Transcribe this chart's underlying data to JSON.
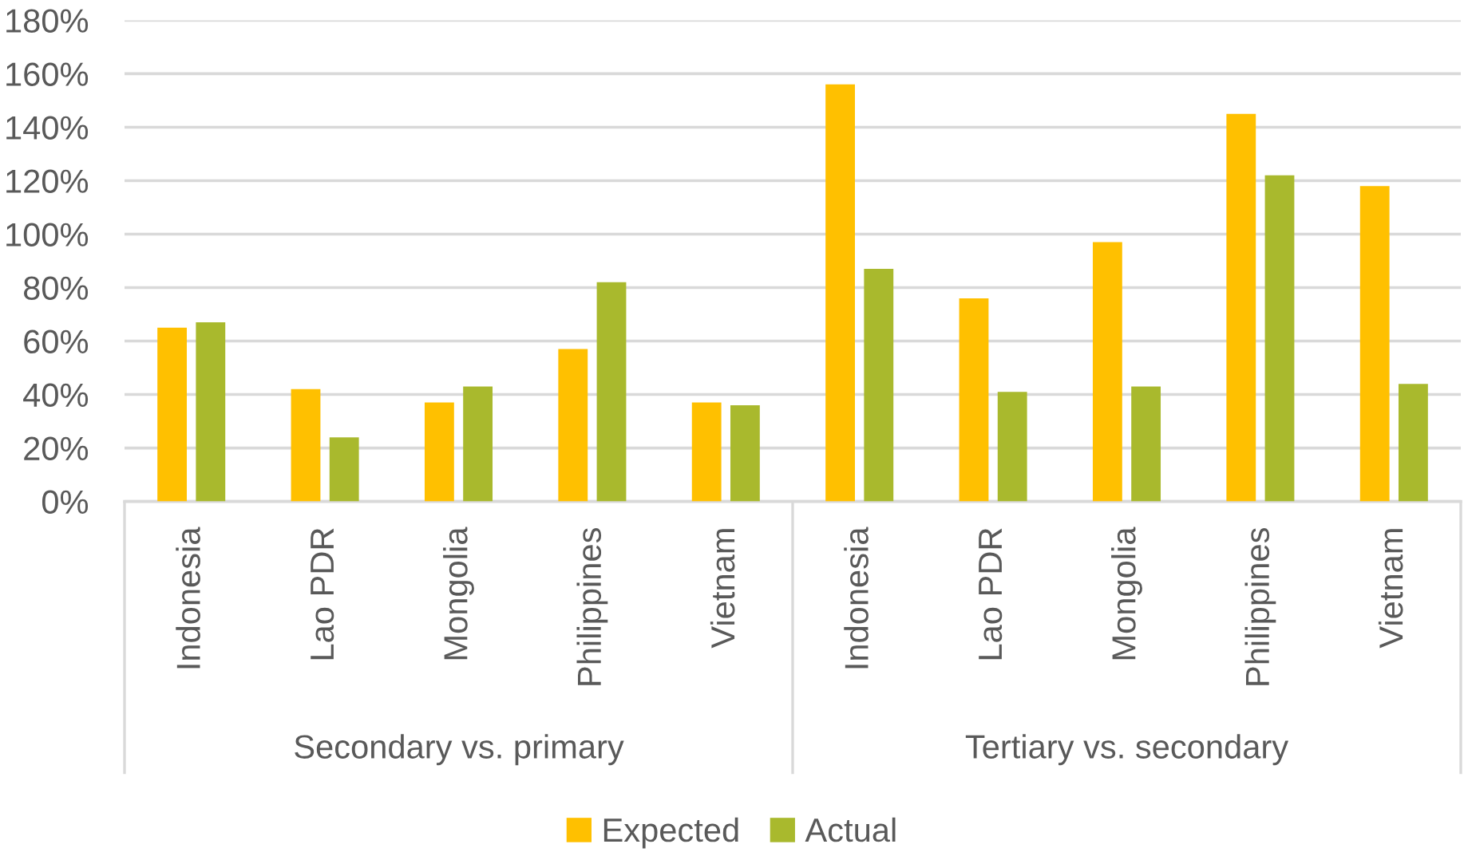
{
  "chart_data": {
    "type": "bar",
    "categories": [
      "Indonesia",
      "Lao PDR",
      "Mongolia",
      "Philippines",
      "Vietnam",
      "Indonesia",
      "Lao PDR",
      "Mongolia",
      "Philippines",
      "Vietnam"
    ],
    "series": [
      {
        "name": "Expected",
        "color": "#FFC000",
        "values": [
          65,
          42,
          37,
          57,
          37,
          156,
          76,
          97,
          145,
          118
        ]
      },
      {
        "name": "Actual",
        "color": "#A9B92D",
        "values": [
          67,
          24,
          43,
          82,
          36,
          87,
          41,
          43,
          122,
          44
        ]
      }
    ],
    "ylim": [
      0,
      180
    ],
    "yticks": [
      {
        "value": 0,
        "label": "0%"
      },
      {
        "value": 20,
        "label": "20%"
      },
      {
        "value": 40,
        "label": "40%"
      },
      {
        "value": 60,
        "label": "60%"
      },
      {
        "value": 80,
        "label": "80%"
      },
      {
        "value": 100,
        "label": "100%"
      },
      {
        "value": 120,
        "label": "120%"
      },
      {
        "value": 140,
        "label": "140%"
      },
      {
        "value": 160,
        "label": "160%"
      },
      {
        "value": 180,
        "label": "180%"
      }
    ],
    "grid": "y",
    "legend": "bottom",
    "annotations": [
      "Secondary vs. primary",
      "Tertiary vs. secondary"
    ]
  }
}
